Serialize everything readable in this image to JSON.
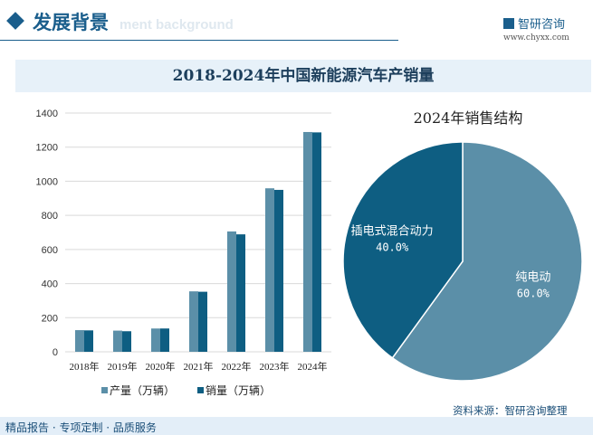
{
  "header": {
    "title": "发展背景",
    "subtitle_watermark": "ment background",
    "logo": "智研咨询",
    "url": "www.chyxx.com"
  },
  "footer": {
    "left": "精品报告 · 专项定制 · 品质服务",
    "source": "资料来源：智研咨询整理"
  },
  "colors": {
    "production": "#5b8fa8",
    "sales": "#0e5e82",
    "accent": "#1a5e8c"
  },
  "chart_data": [
    {
      "type": "bar",
      "title": "2018-2024年中国新能源汽车产销量",
      "categories": [
        "2018年",
        "2019年",
        "2020年",
        "2021年",
        "2022年",
        "2023年",
        "2024年"
      ],
      "series": [
        {
          "name": "产量（万辆）",
          "values": [
            127,
            124.2,
            136.6,
            354.5,
            705.8,
            958.7,
            1288.8
          ]
        },
        {
          "name": "销量（万辆）",
          "values": [
            125.6,
            120.6,
            136.7,
            352.1,
            688.7,
            949.5,
            1286.6
          ]
        }
      ],
      "ylim": [
        0,
        1400
      ],
      "yticks": [
        "0",
        "200",
        "400",
        "600",
        "800",
        "1000",
        "1200",
        "1400"
      ],
      "grid": true,
      "legend": "bottom"
    },
    {
      "type": "pie",
      "title": "2024年销售结构",
      "slices": [
        {
          "label": "纯电动",
          "value": 60.0,
          "pct": "60.0%"
        },
        {
          "label": "插电式混合动力",
          "value": 40.0,
          "pct": "40.0%"
        }
      ]
    }
  ]
}
